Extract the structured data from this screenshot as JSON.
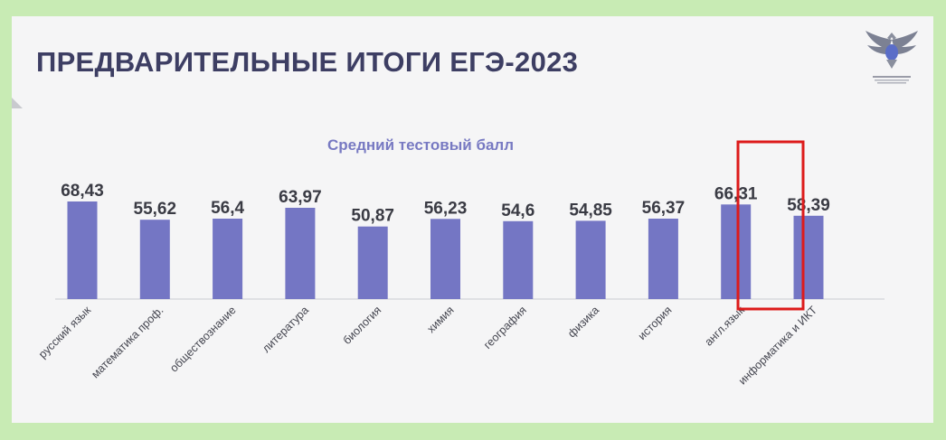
{
  "slide": {
    "title": "ПРЕДВАРИТЕЛЬНЫЕ ИТОГИ ЕГЭ-2023"
  },
  "logo": {
    "icon": "eagle-emblem-icon"
  },
  "colors": {
    "background": "#c8ebb4",
    "slide": "#f5f5f6",
    "bar": "#7476c4",
    "highlight": "#dd1b1b",
    "title": "#3d3e63"
  },
  "chart_data": {
    "type": "bar",
    "title": "Средний тестовый балл",
    "categories": [
      "русский язык",
      "математика проф.",
      "обществознание",
      "литература",
      "биология",
      "химия",
      "география",
      "физика",
      "история",
      "англ.язык",
      "информатика и ИКТ"
    ],
    "values": [
      68.43,
      55.62,
      56.4,
      63.97,
      50.87,
      56.23,
      54.6,
      54.85,
      56.37,
      66.31,
      58.39
    ],
    "value_labels": [
      "68,43",
      "55,62",
      "56,4",
      "63,97",
      "50,87",
      "56,23",
      "54,6",
      "54,85",
      "56,37",
      "66,31",
      "58,39"
    ],
    "highlighted_category": "англ.язык",
    "ylim": [
      0,
      80
    ],
    "grid": false,
    "legend": "none"
  }
}
